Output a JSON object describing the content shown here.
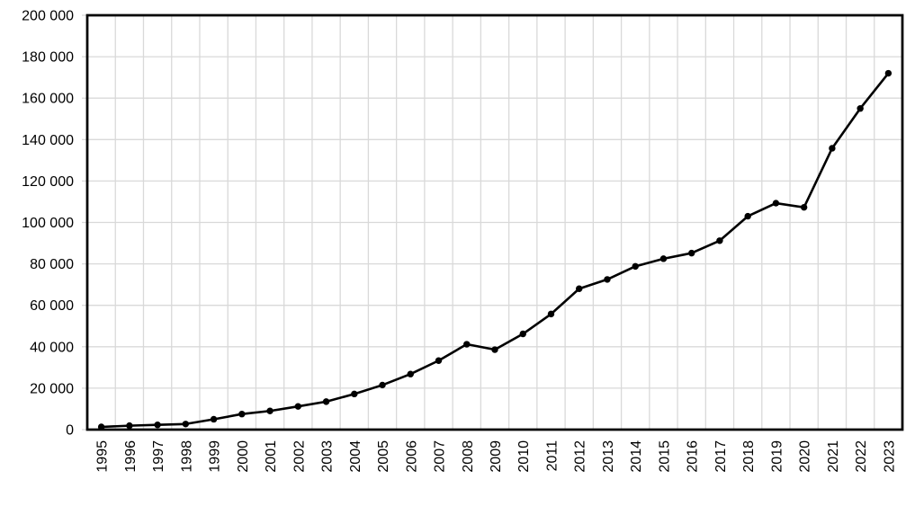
{
  "chart_data": {
    "type": "line",
    "title": "",
    "xlabel": "",
    "ylabel": "",
    "categories": [
      "1995",
      "1996",
      "1997",
      "1998",
      "1999",
      "2000",
      "2001",
      "2002",
      "2003",
      "2004",
      "2005",
      "2006",
      "2007",
      "2008",
      "2009",
      "2010",
      "2011",
      "2012",
      "2013",
      "2014",
      "2015",
      "2016",
      "2017",
      "2018",
      "2019",
      "2020",
      "2021",
      "2022",
      "2023"
    ],
    "values": [
      1300,
      1900,
      2300,
      2700,
      5000,
      7500,
      9000,
      11200,
      13500,
      17200,
      21500,
      26800,
      33300,
      41200,
      38600,
      46200,
      55800,
      68000,
      72500,
      78800,
      82500,
      85200,
      91200,
      103000,
      109300,
      107300,
      135800,
      155000,
      172000
    ],
    "ylim": [
      0,
      200000
    ],
    "y_tick_step": 20000,
    "y_tick_labels": [
      "0",
      "20 000",
      "40 000",
      "60 000",
      "80 000",
      "100 000",
      "120 000",
      "140 000",
      "160 000",
      "180 000",
      "200 000"
    ],
    "grid": true,
    "legend": false,
    "marker": "circle",
    "series_color": "#000000",
    "gridline_color": "#d9d9d9",
    "axis_color": "#000000",
    "text_color": "#000000",
    "background_color": "#ffffff"
  }
}
